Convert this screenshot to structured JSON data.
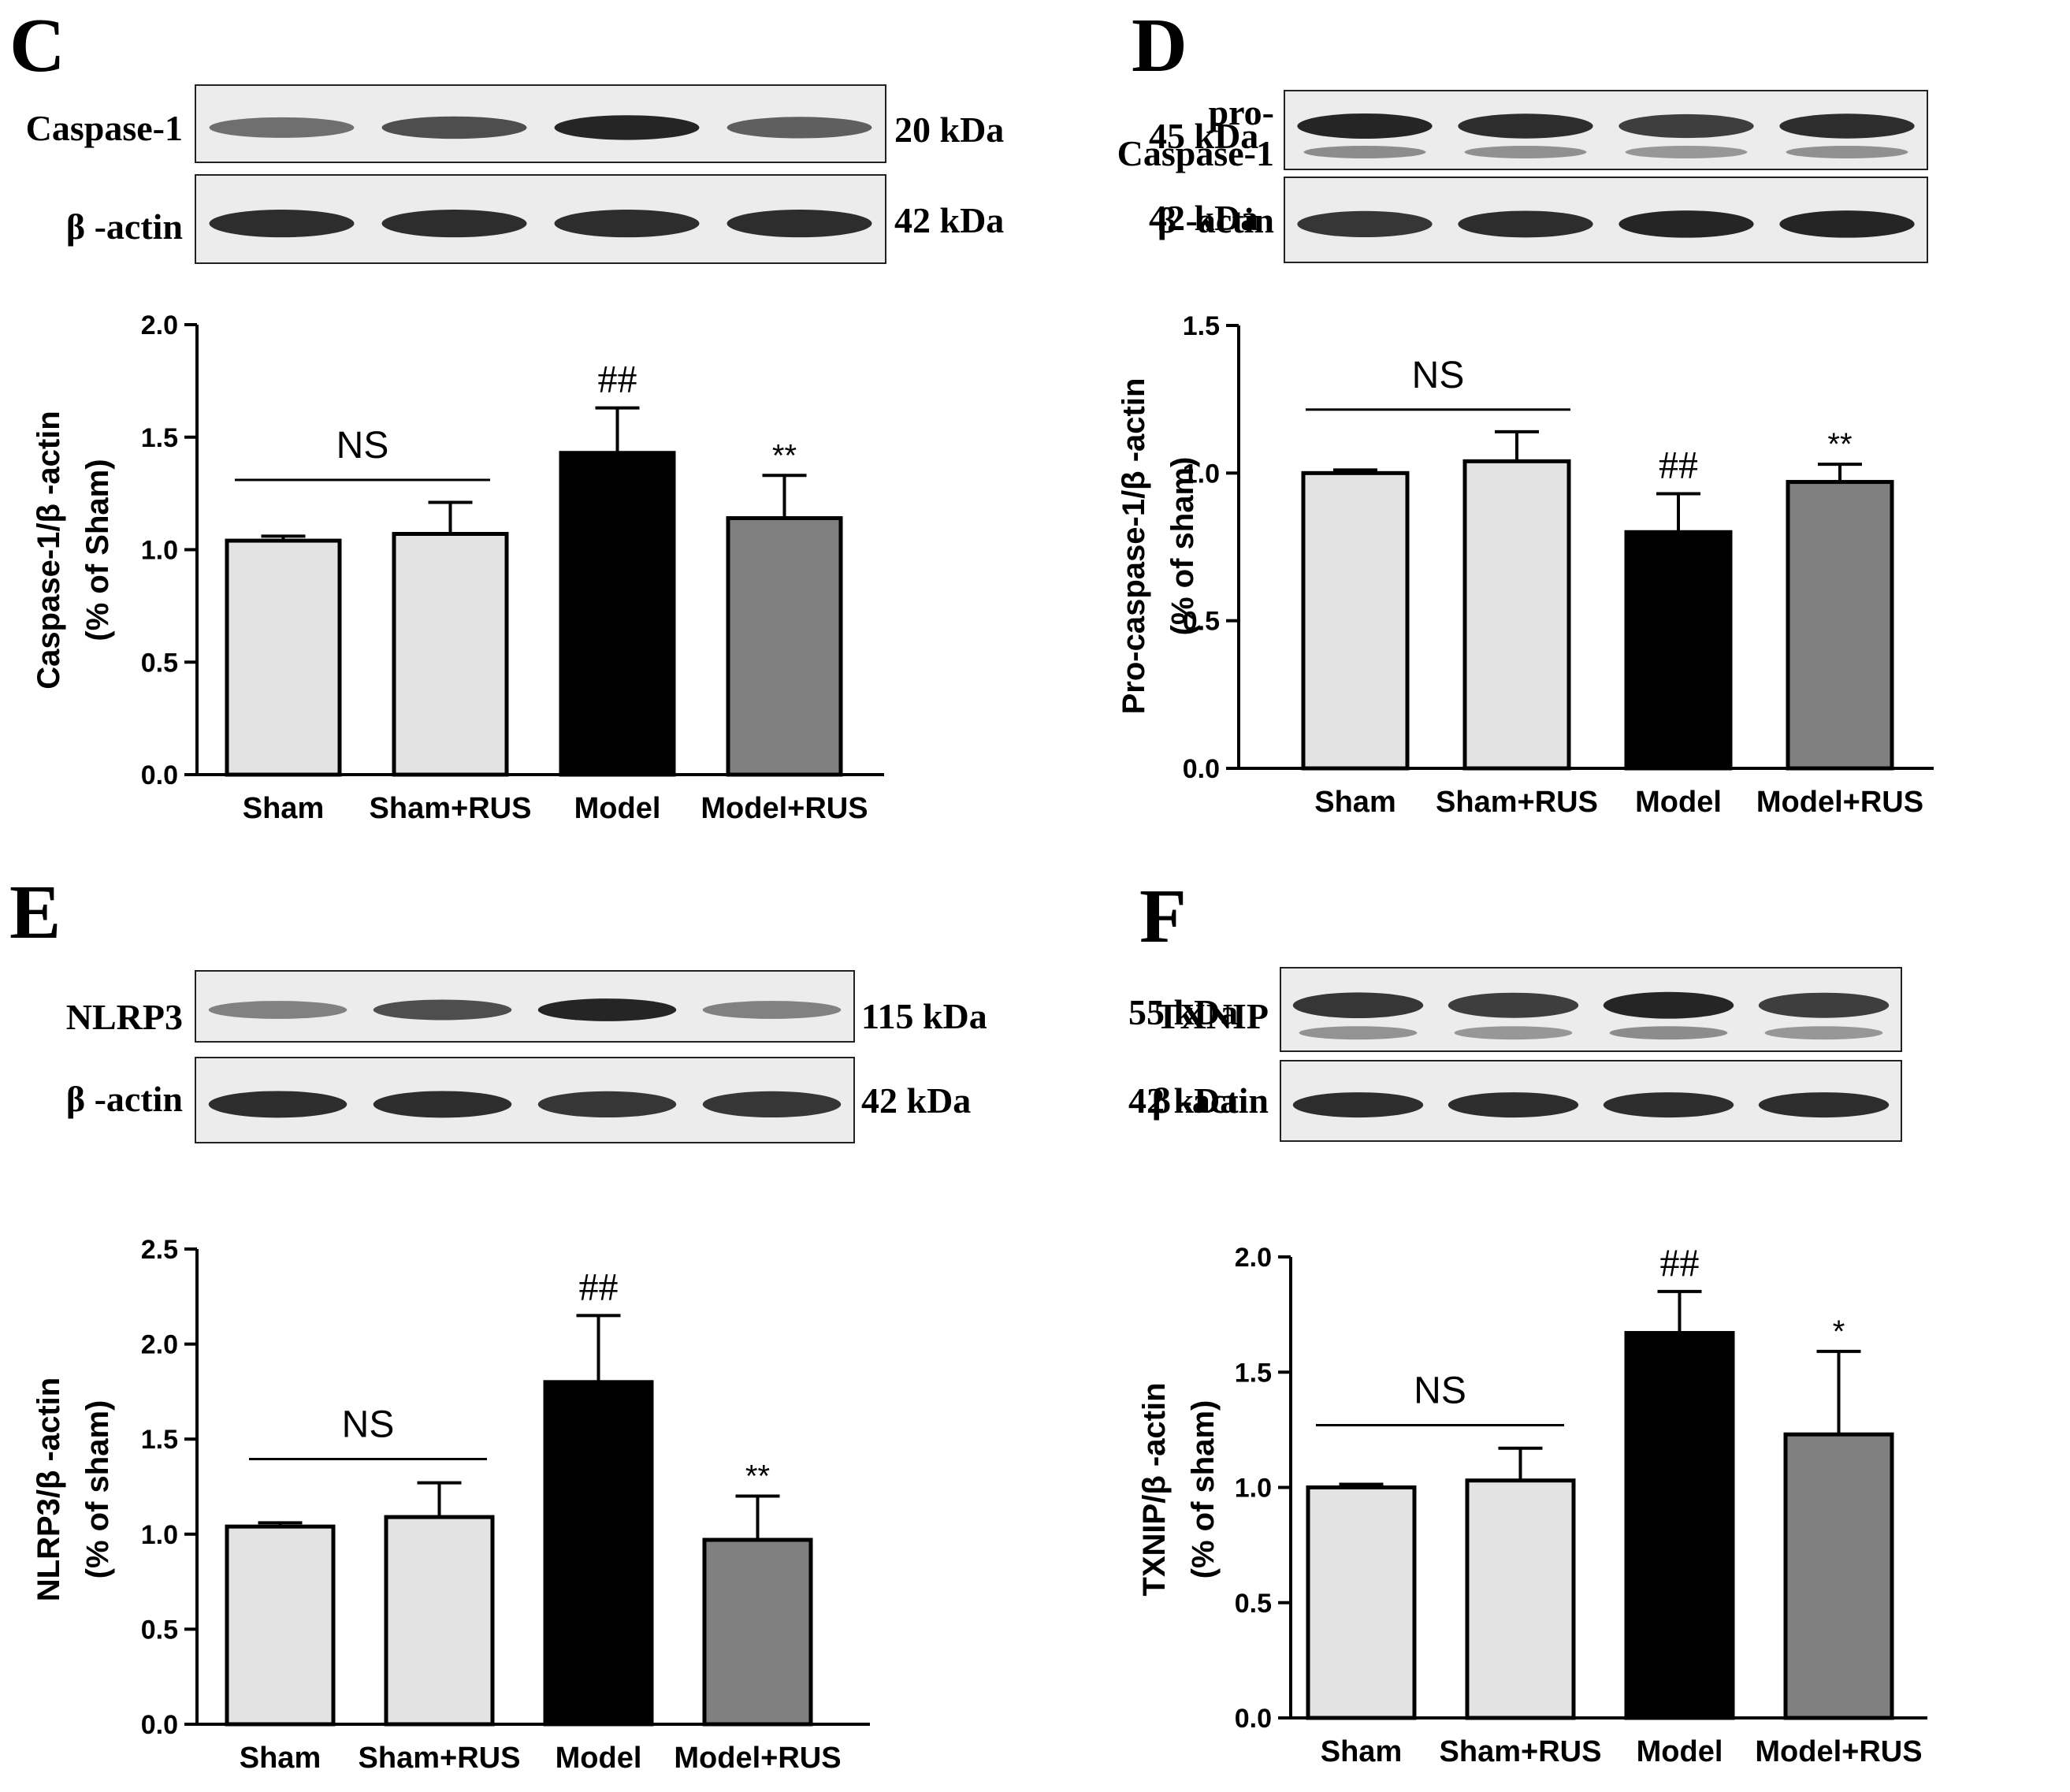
{
  "panels": [
    {
      "letter": "C",
      "blot": {
        "rows": [
          {
            "label": "Caspase-1",
            "label_lines": [
              "Caspase-1"
            ],
            "kda": "20 kDa",
            "intensities": [
              0.55,
              0.75,
              1.0,
              0.65
            ],
            "doublet": false
          },
          {
            "label": "β -actin",
            "label_lines": [
              "β -actin"
            ],
            "kda": "42 kDa",
            "intensities": [
              0.95,
              0.95,
              0.95,
              0.95
            ],
            "doublet": false
          }
        ]
      },
      "chart_data": {
        "type": "bar",
        "categories": [
          "Sham",
          "Sham+RUS",
          "Model",
          "Model+RUS"
        ],
        "values": [
          1.04,
          1.07,
          1.43,
          1.14
        ],
        "errors": [
          0.02,
          0.14,
          0.2,
          0.19
        ],
        "colors": [
          "#e3e3e3",
          "#e3e3e3",
          "#000000",
          "#808080"
        ],
        "annotations": [
          "",
          "",
          "##",
          "**"
        ],
        "ns_label": "NS",
        "ylabel_lines": [
          "Caspase-1/β -actin",
          "(% of Sham)"
        ],
        "ylim": [
          0,
          2.0
        ],
        "ytick_labels": [
          "0.0",
          "0.5",
          "1.0",
          "1.5",
          "2.0"
        ]
      }
    },
    {
      "letter": "D",
      "blot": {
        "rows": [
          {
            "label": "pro- Caspase-1",
            "label_lines": [
              "pro-",
              "Caspase-1"
            ],
            "kda": "45 kDa",
            "intensities": [
              1.0,
              0.95,
              0.85,
              0.95
            ],
            "doublet": true
          },
          {
            "label": "β -actin",
            "label_lines": [
              "β -actin"
            ],
            "kda": "42 kDa",
            "intensities": [
              0.9,
              0.95,
              1.0,
              1.0
            ],
            "doublet": false
          }
        ]
      },
      "chart_data": {
        "type": "bar",
        "categories": [
          "Sham",
          "Sham+RUS",
          "Model",
          "Model+RUS"
        ],
        "values": [
          1.0,
          1.04,
          0.8,
          0.97
        ],
        "errors": [
          0.0,
          0.1,
          0.13,
          0.06
        ],
        "colors": [
          "#e3e3e3",
          "#e3e3e3",
          "#000000",
          "#808080"
        ],
        "annotations": [
          "",
          "",
          "##",
          "**"
        ],
        "ns_label": "NS",
        "ylabel_lines": [
          "Pro-caspase-1/β -actin",
          "(% of sham)"
        ],
        "ylim": [
          0,
          1.5
        ],
        "ytick_labels": [
          "0.0",
          "0.5",
          "1.0",
          "1.5"
        ]
      }
    },
    {
      "letter": "E",
      "blot": {
        "rows": [
          {
            "label": "NLRP3",
            "label_lines": [
              "NLRP3"
            ],
            "kda": "115 kDa",
            "intensities": [
              0.45,
              0.75,
              1.0,
              0.45
            ],
            "doublet": false
          },
          {
            "label": "β -actin",
            "label_lines": [
              "β -actin"
            ],
            "kda": "42 kDa",
            "intensities": [
              0.95,
              0.95,
              0.9,
              0.9
            ],
            "doublet": false
          }
        ]
      },
      "chart_data": {
        "type": "bar",
        "categories": [
          "Sham",
          "Sham+RUS",
          "Model",
          "Model+RUS"
        ],
        "values": [
          1.04,
          1.09,
          1.8,
          0.97
        ],
        "errors": [
          0.02,
          0.18,
          0.35,
          0.23
        ],
        "colors": [
          "#e3e3e3",
          "#e3e3e3",
          "#000000",
          "#808080"
        ],
        "annotations": [
          "",
          "",
          "##",
          "**"
        ],
        "ns_label": "NS",
        "ylabel_lines": [
          "NLRP3/β -actin",
          "(% of sham)"
        ],
        "ylim": [
          0,
          2.5
        ],
        "ytick_labels": [
          "0.0",
          "0.5",
          "1.0",
          "1.5",
          "2.0",
          "2.5"
        ]
      }
    },
    {
      "letter": "F",
      "blot": {
        "rows": [
          {
            "label": "TXNIP",
            "label_lines": [
              "TXNIP"
            ],
            "kda": "55 kDa",
            "intensities": [
              0.9,
              0.85,
              1.0,
              0.85
            ],
            "doublet": true
          },
          {
            "label": "β -actin",
            "label_lines": [
              "β -actin"
            ],
            "kda": "42 kDa",
            "intensities": [
              0.95,
              0.95,
              0.95,
              0.95
            ],
            "doublet": false
          }
        ]
      },
      "chart_data": {
        "type": "bar",
        "categories": [
          "Sham",
          "Sham+RUS",
          "Model",
          "Model+RUS"
        ],
        "values": [
          1.0,
          1.03,
          1.67,
          1.23
        ],
        "errors": [
          0.0,
          0.14,
          0.18,
          0.36
        ],
        "colors": [
          "#e3e3e3",
          "#e3e3e3",
          "#000000",
          "#808080"
        ],
        "annotations": [
          "",
          "",
          "##",
          "*"
        ],
        "ns_label": "NS",
        "ylabel_lines": [
          "TXNIP/β -actin",
          "(% of sham)"
        ],
        "ylim": [
          0,
          2.0
        ],
        "ytick_labels": [
          "0.0",
          "0.5",
          "1.0",
          "1.5",
          "2.0"
        ]
      }
    }
  ]
}
